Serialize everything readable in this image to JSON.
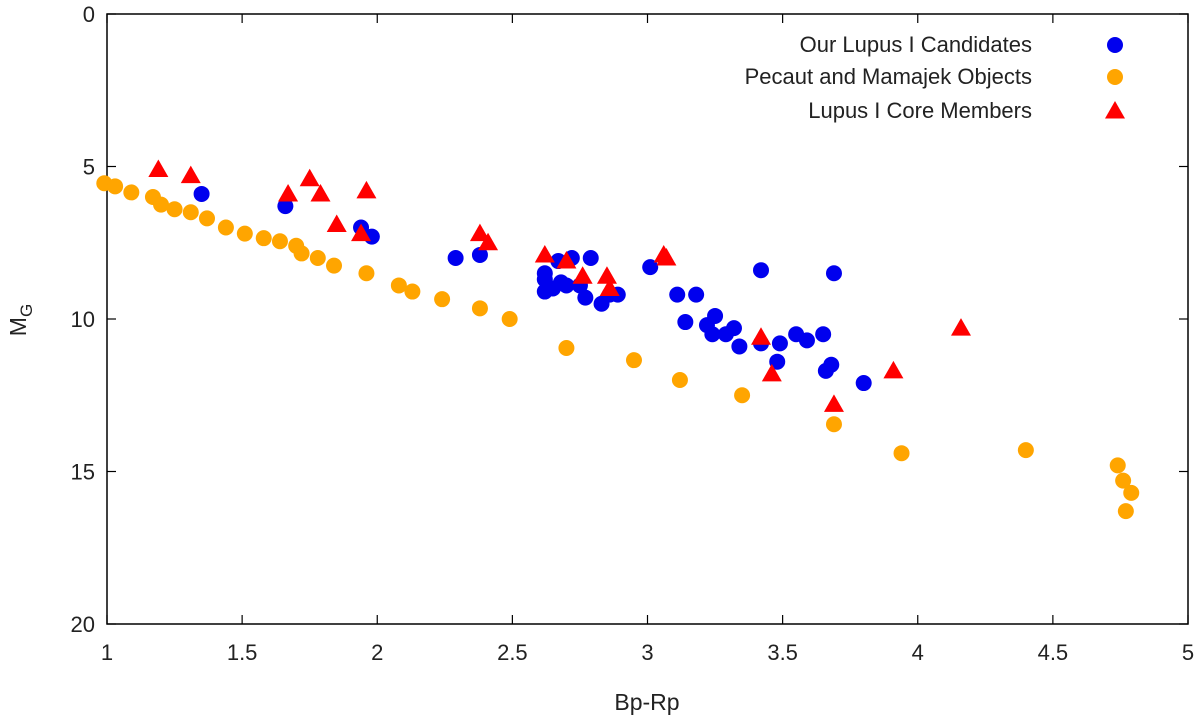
{
  "chart_data": {
    "type": "scatter",
    "title": "",
    "xlabel": "Bp-Rp",
    "ylabel_main": "M",
    "ylabel_sub": "G",
    "xlim": [
      1,
      5
    ],
    "ylim": [
      0,
      20
    ],
    "y_inverted": true,
    "xticks": [
      1,
      1.5,
      2,
      2.5,
      3,
      3.5,
      4,
      4.5,
      5
    ],
    "xtick_labels": [
      "1",
      "1.5",
      "2",
      "2.5",
      "3",
      "3.5",
      "4",
      "4.5",
      "5"
    ],
    "yticks": [
      0,
      5,
      10,
      15,
      20
    ],
    "ytick_labels": [
      "0",
      "5",
      "10",
      "15",
      "20"
    ],
    "grid": false,
    "legend_position": "top-right",
    "series": [
      {
        "name": "Our Lupus I Candidates",
        "marker": "circle",
        "color": "#0000ee",
        "points": [
          [
            1.35,
            5.9
          ],
          [
            1.66,
            6.3
          ],
          [
            1.94,
            7.0
          ],
          [
            1.98,
            7.3
          ],
          [
            2.29,
            8.0
          ],
          [
            2.38,
            7.9
          ],
          [
            2.62,
            8.5
          ],
          [
            2.62,
            8.7
          ],
          [
            2.62,
            9.1
          ],
          [
            2.65,
            9.0
          ],
          [
            2.67,
            8.1
          ],
          [
            2.68,
            8.8
          ],
          [
            2.7,
            8.9
          ],
          [
            2.72,
            8.0
          ],
          [
            2.75,
            8.9
          ],
          [
            2.77,
            9.3
          ],
          [
            2.79,
            8.0
          ],
          [
            2.83,
            9.5
          ],
          [
            2.86,
            9.2
          ],
          [
            2.89,
            9.2
          ],
          [
            3.01,
            8.3
          ],
          [
            3.11,
            9.2
          ],
          [
            3.14,
            10.1
          ],
          [
            3.18,
            9.2
          ],
          [
            3.22,
            10.2
          ],
          [
            3.24,
            10.5
          ],
          [
            3.25,
            9.9
          ],
          [
            3.29,
            10.5
          ],
          [
            3.32,
            10.3
          ],
          [
            3.34,
            10.9
          ],
          [
            3.42,
            8.4
          ],
          [
            3.42,
            10.8
          ],
          [
            3.48,
            11.4
          ],
          [
            3.49,
            10.8
          ],
          [
            3.55,
            10.5
          ],
          [
            3.59,
            10.7
          ],
          [
            3.65,
            10.5
          ],
          [
            3.66,
            11.7
          ],
          [
            3.68,
            11.5
          ],
          [
            3.69,
            8.5
          ],
          [
            3.8,
            12.1
          ]
        ]
      },
      {
        "name": "Pecaut and Mamajek Objects",
        "marker": "circle",
        "color": "#ffa500",
        "points": [
          [
            0.99,
            5.55
          ],
          [
            1.03,
            5.65
          ],
          [
            1.09,
            5.85
          ],
          [
            1.17,
            6.0
          ],
          [
            1.2,
            6.25
          ],
          [
            1.25,
            6.4
          ],
          [
            1.31,
            6.5
          ],
          [
            1.37,
            6.7
          ],
          [
            1.44,
            7.0
          ],
          [
            1.51,
            7.2
          ],
          [
            1.58,
            7.35
          ],
          [
            1.64,
            7.45
          ],
          [
            1.7,
            7.6
          ],
          [
            1.72,
            7.85
          ],
          [
            1.78,
            8.0
          ],
          [
            1.84,
            8.25
          ],
          [
            1.96,
            8.5
          ],
          [
            2.08,
            8.9
          ],
          [
            2.13,
            9.1
          ],
          [
            2.24,
            9.35
          ],
          [
            2.38,
            9.65
          ],
          [
            2.49,
            10.0
          ],
          [
            2.7,
            10.95
          ],
          [
            2.95,
            11.35
          ],
          [
            3.12,
            12.0
          ],
          [
            3.35,
            12.5
          ],
          [
            3.69,
            13.45
          ],
          [
            3.94,
            14.4
          ],
          [
            4.4,
            14.3
          ],
          [
            4.74,
            14.8
          ],
          [
            4.76,
            15.3
          ],
          [
            4.79,
            15.7
          ],
          [
            4.77,
            16.3
          ]
        ]
      },
      {
        "name": "Lupus I Core Members",
        "marker": "triangle",
        "color": "#ff0000",
        "points": [
          [
            1.19,
            5.1
          ],
          [
            1.31,
            5.3
          ],
          [
            1.67,
            5.9
          ],
          [
            1.75,
            5.4
          ],
          [
            1.79,
            5.9
          ],
          [
            1.85,
            6.9
          ],
          [
            1.94,
            7.2
          ],
          [
            1.96,
            5.8
          ],
          [
            2.38,
            7.2
          ],
          [
            2.41,
            7.5
          ],
          [
            2.62,
            7.9
          ],
          [
            2.7,
            8.1
          ],
          [
            2.76,
            8.6
          ],
          [
            2.85,
            8.6
          ],
          [
            2.86,
            9.0
          ],
          [
            3.06,
            7.9
          ],
          [
            3.07,
            8.0
          ],
          [
            3.42,
            10.6
          ],
          [
            3.46,
            11.8
          ],
          [
            3.69,
            12.8
          ],
          [
            3.91,
            11.7
          ],
          [
            4.16,
            10.3
          ]
        ]
      }
    ]
  }
}
